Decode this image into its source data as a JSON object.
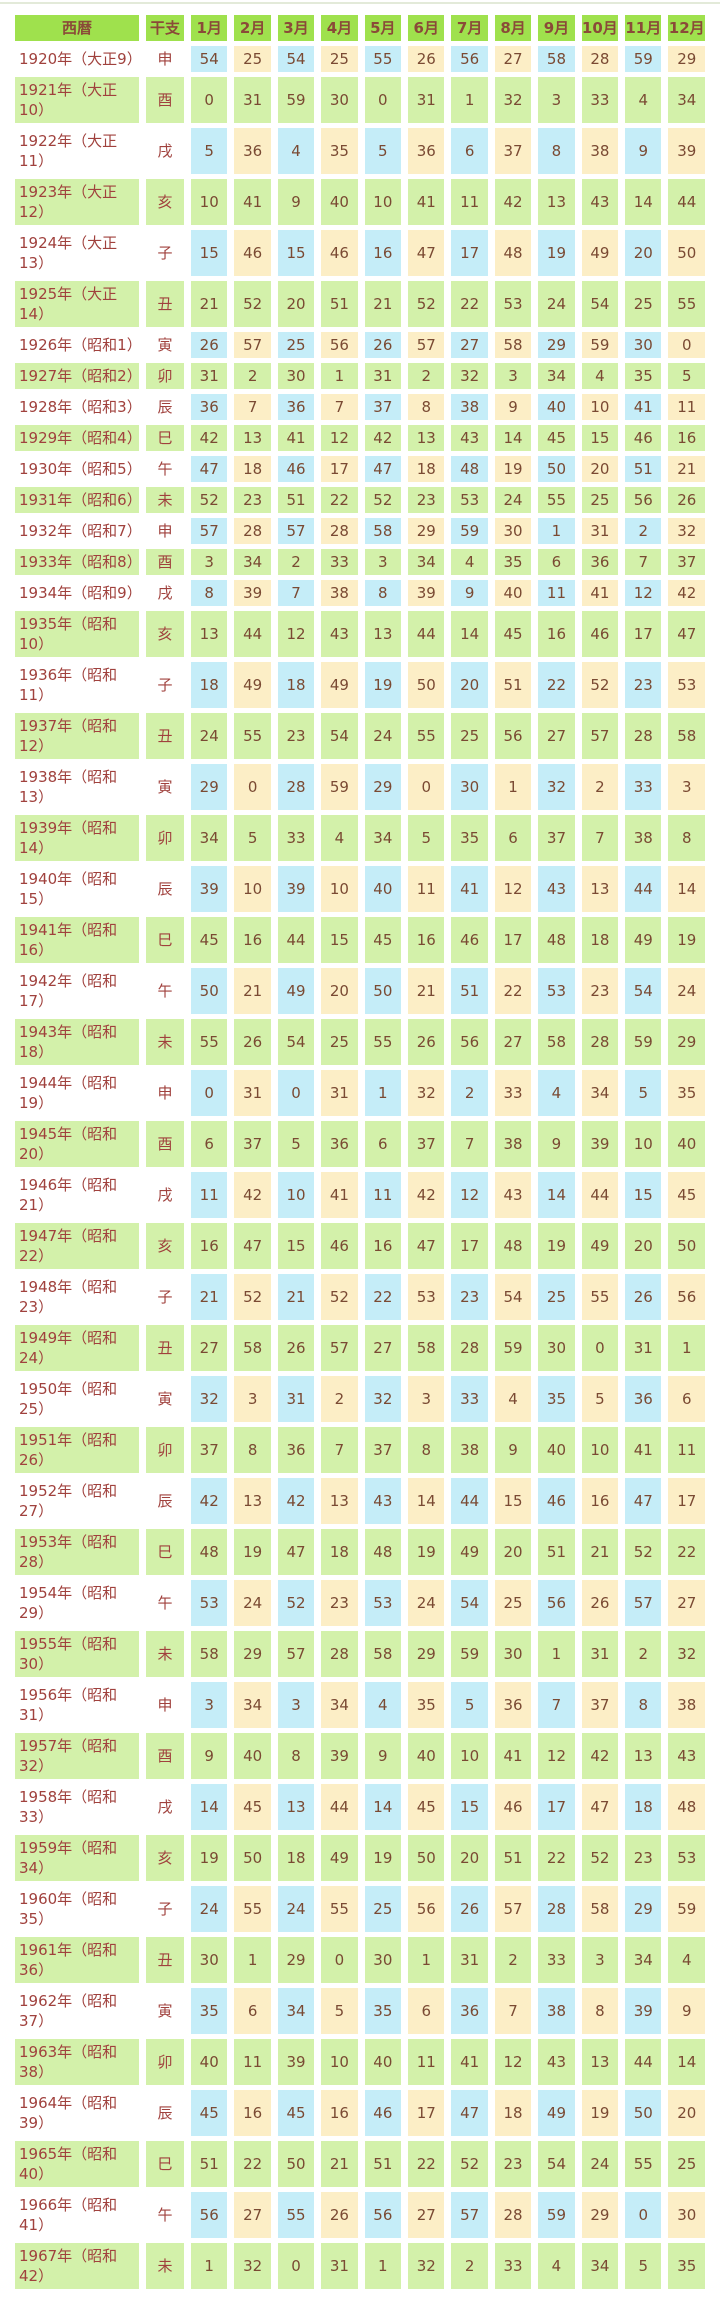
{
  "colors": {
    "header_bg": "#9fe14d",
    "green_row_bg": "#d3f1aa",
    "blue_cell_bg": "#c5edf8",
    "cream_cell_bg": "#fceec6",
    "white_cell_bg": "#ffffff",
    "header_text": "#8a4a38",
    "year_text": "#a0413d",
    "value_text": "#7a4a33"
  },
  "table": {
    "columns": [
      "西暦",
      "干支",
      "1月",
      "2月",
      "3月",
      "4月",
      "5月",
      "6月",
      "7月",
      "8月",
      "9月",
      "10月",
      "11月",
      "12月"
    ],
    "rows": [
      {
        "year": "1920年（大正9）",
        "eto": "申",
        "months": [
          54,
          25,
          54,
          25,
          55,
          26,
          56,
          27,
          58,
          28,
          59,
          29
        ]
      },
      {
        "year": "1921年（大正10）",
        "eto": "酉",
        "months": [
          0,
          31,
          59,
          30,
          0,
          31,
          1,
          32,
          3,
          33,
          4,
          34
        ]
      },
      {
        "year": "1922年（大正11）",
        "eto": "戌",
        "months": [
          5,
          36,
          4,
          35,
          5,
          36,
          6,
          37,
          8,
          38,
          9,
          39
        ]
      },
      {
        "year": "1923年（大正12）",
        "eto": "亥",
        "months": [
          10,
          41,
          9,
          40,
          10,
          41,
          11,
          42,
          13,
          43,
          14,
          44
        ]
      },
      {
        "year": "1924年（大正13）",
        "eto": "子",
        "months": [
          15,
          46,
          15,
          46,
          16,
          47,
          17,
          48,
          19,
          49,
          20,
          50
        ]
      },
      {
        "year": "1925年（大正14）",
        "eto": "丑",
        "months": [
          21,
          52,
          20,
          51,
          21,
          52,
          22,
          53,
          24,
          54,
          25,
          55
        ]
      },
      {
        "year": "1926年（昭和1）",
        "eto": "寅",
        "months": [
          26,
          57,
          25,
          56,
          26,
          57,
          27,
          58,
          29,
          59,
          30,
          0
        ]
      },
      {
        "year": "1927年（昭和2）",
        "eto": "卯",
        "months": [
          31,
          2,
          30,
          1,
          31,
          2,
          32,
          3,
          34,
          4,
          35,
          5
        ]
      },
      {
        "year": "1928年（昭和3）",
        "eto": "辰",
        "months": [
          36,
          7,
          36,
          7,
          37,
          8,
          38,
          9,
          40,
          10,
          41,
          11
        ]
      },
      {
        "year": "1929年（昭和4）",
        "eto": "巳",
        "months": [
          42,
          13,
          41,
          12,
          42,
          13,
          43,
          14,
          45,
          15,
          46,
          16
        ]
      },
      {
        "year": "1930年（昭和5）",
        "eto": "午",
        "months": [
          47,
          18,
          46,
          17,
          47,
          18,
          48,
          19,
          50,
          20,
          51,
          21
        ]
      },
      {
        "year": "1931年（昭和6）",
        "eto": "未",
        "months": [
          52,
          23,
          51,
          22,
          52,
          23,
          53,
          24,
          55,
          25,
          56,
          26
        ]
      },
      {
        "year": "1932年（昭和7）",
        "eto": "申",
        "months": [
          57,
          28,
          57,
          28,
          58,
          29,
          59,
          30,
          1,
          31,
          2,
          32
        ]
      },
      {
        "year": "1933年（昭和8）",
        "eto": "酉",
        "months": [
          3,
          34,
          2,
          33,
          3,
          34,
          4,
          35,
          6,
          36,
          7,
          37
        ]
      },
      {
        "year": "1934年（昭和9）",
        "eto": "戌",
        "months": [
          8,
          39,
          7,
          38,
          8,
          39,
          9,
          40,
          11,
          41,
          12,
          42
        ]
      },
      {
        "year": "1935年（昭和10）",
        "eto": "亥",
        "months": [
          13,
          44,
          12,
          43,
          13,
          44,
          14,
          45,
          16,
          46,
          17,
          47
        ]
      },
      {
        "year": "1936年（昭和11）",
        "eto": "子",
        "months": [
          18,
          49,
          18,
          49,
          19,
          50,
          20,
          51,
          22,
          52,
          23,
          53
        ]
      },
      {
        "year": "1937年（昭和12）",
        "eto": "丑",
        "months": [
          24,
          55,
          23,
          54,
          24,
          55,
          25,
          56,
          27,
          57,
          28,
          58
        ]
      },
      {
        "year": "1938年（昭和13）",
        "eto": "寅",
        "months": [
          29,
          0,
          28,
          59,
          29,
          0,
          30,
          1,
          32,
          2,
          33,
          3
        ]
      },
      {
        "year": "1939年（昭和14）",
        "eto": "卯",
        "months": [
          34,
          5,
          33,
          4,
          34,
          5,
          35,
          6,
          37,
          7,
          38,
          8
        ]
      },
      {
        "year": "1940年（昭和15）",
        "eto": "辰",
        "months": [
          39,
          10,
          39,
          10,
          40,
          11,
          41,
          12,
          43,
          13,
          44,
          14
        ]
      },
      {
        "year": "1941年（昭和16）",
        "eto": "巳",
        "months": [
          45,
          16,
          44,
          15,
          45,
          16,
          46,
          17,
          48,
          18,
          49,
          19
        ]
      },
      {
        "year": "1942年（昭和17）",
        "eto": "午",
        "months": [
          50,
          21,
          49,
          20,
          50,
          21,
          51,
          22,
          53,
          23,
          54,
          24
        ]
      },
      {
        "year": "1943年（昭和18）",
        "eto": "未",
        "months": [
          55,
          26,
          54,
          25,
          55,
          26,
          56,
          27,
          58,
          28,
          59,
          29
        ]
      },
      {
        "year": "1944年（昭和19）",
        "eto": "申",
        "months": [
          0,
          31,
          0,
          31,
          1,
          32,
          2,
          33,
          4,
          34,
          5,
          35
        ]
      },
      {
        "year": "1945年（昭和20）",
        "eto": "酉",
        "months": [
          6,
          37,
          5,
          36,
          6,
          37,
          7,
          38,
          9,
          39,
          10,
          40
        ]
      },
      {
        "year": "1946年（昭和21）",
        "eto": "戌",
        "months": [
          11,
          42,
          10,
          41,
          11,
          42,
          12,
          43,
          14,
          44,
          15,
          45
        ]
      },
      {
        "year": "1947年（昭和22）",
        "eto": "亥",
        "months": [
          16,
          47,
          15,
          46,
          16,
          47,
          17,
          48,
          19,
          49,
          20,
          50
        ]
      },
      {
        "year": "1948年（昭和23）",
        "eto": "子",
        "months": [
          21,
          52,
          21,
          52,
          22,
          53,
          23,
          54,
          25,
          55,
          26,
          56
        ]
      },
      {
        "year": "1949年（昭和24）",
        "eto": "丑",
        "months": [
          27,
          58,
          26,
          57,
          27,
          58,
          28,
          59,
          30,
          0,
          31,
          1
        ]
      },
      {
        "year": "1950年（昭和25）",
        "eto": "寅",
        "months": [
          32,
          3,
          31,
          2,
          32,
          3,
          33,
          4,
          35,
          5,
          36,
          6
        ]
      },
      {
        "year": "1951年（昭和26）",
        "eto": "卯",
        "months": [
          37,
          8,
          36,
          7,
          37,
          8,
          38,
          9,
          40,
          10,
          41,
          11
        ]
      },
      {
        "year": "1952年（昭和27）",
        "eto": "辰",
        "months": [
          42,
          13,
          42,
          13,
          43,
          14,
          44,
          15,
          46,
          16,
          47,
          17
        ]
      },
      {
        "year": "1953年（昭和28）",
        "eto": "巳",
        "months": [
          48,
          19,
          47,
          18,
          48,
          19,
          49,
          20,
          51,
          21,
          52,
          22
        ]
      },
      {
        "year": "1954年（昭和29）",
        "eto": "午",
        "months": [
          53,
          24,
          52,
          23,
          53,
          24,
          54,
          25,
          56,
          26,
          57,
          27
        ]
      },
      {
        "year": "1955年（昭和30）",
        "eto": "未",
        "months": [
          58,
          29,
          57,
          28,
          58,
          29,
          59,
          30,
          1,
          31,
          2,
          32
        ]
      },
      {
        "year": "1956年（昭和31）",
        "eto": "申",
        "months": [
          3,
          34,
          3,
          34,
          4,
          35,
          5,
          36,
          7,
          37,
          8,
          38
        ]
      },
      {
        "year": "1957年（昭和32）",
        "eto": "酉",
        "months": [
          9,
          40,
          8,
          39,
          9,
          40,
          10,
          41,
          12,
          42,
          13,
          43
        ]
      },
      {
        "year": "1958年（昭和33）",
        "eto": "戌",
        "months": [
          14,
          45,
          13,
          44,
          14,
          45,
          15,
          46,
          17,
          47,
          18,
          48
        ]
      },
      {
        "year": "1959年（昭和34）",
        "eto": "亥",
        "months": [
          19,
          50,
          18,
          49,
          19,
          50,
          20,
          51,
          22,
          52,
          23,
          53
        ]
      },
      {
        "year": "1960年（昭和35）",
        "eto": "子",
        "months": [
          24,
          55,
          24,
          55,
          25,
          56,
          26,
          57,
          28,
          58,
          29,
          59
        ]
      },
      {
        "year": "1961年（昭和36）",
        "eto": "丑",
        "months": [
          30,
          1,
          29,
          0,
          30,
          1,
          31,
          2,
          33,
          3,
          34,
          4
        ]
      },
      {
        "year": "1962年（昭和37）",
        "eto": "寅",
        "months": [
          35,
          6,
          34,
          5,
          35,
          6,
          36,
          7,
          38,
          8,
          39,
          9
        ]
      },
      {
        "year": "1963年（昭和38）",
        "eto": "卯",
        "months": [
          40,
          11,
          39,
          10,
          40,
          11,
          41,
          12,
          43,
          13,
          44,
          14
        ]
      },
      {
        "year": "1964年（昭和39）",
        "eto": "辰",
        "months": [
          45,
          16,
          45,
          16,
          46,
          17,
          47,
          18,
          49,
          19,
          50,
          20
        ]
      },
      {
        "year": "1965年（昭和40）",
        "eto": "巳",
        "months": [
          51,
          22,
          50,
          21,
          51,
          22,
          52,
          23,
          54,
          24,
          55,
          25
        ]
      },
      {
        "year": "1966年（昭和41）",
        "eto": "午",
        "months": [
          56,
          27,
          55,
          26,
          56,
          27,
          57,
          28,
          59,
          29,
          0,
          30
        ]
      },
      {
        "year": "1967年（昭和42）",
        "eto": "未",
        "months": [
          1,
          32,
          0,
          31,
          1,
          32,
          2,
          33,
          4,
          34,
          5,
          35
        ]
      }
    ]
  }
}
